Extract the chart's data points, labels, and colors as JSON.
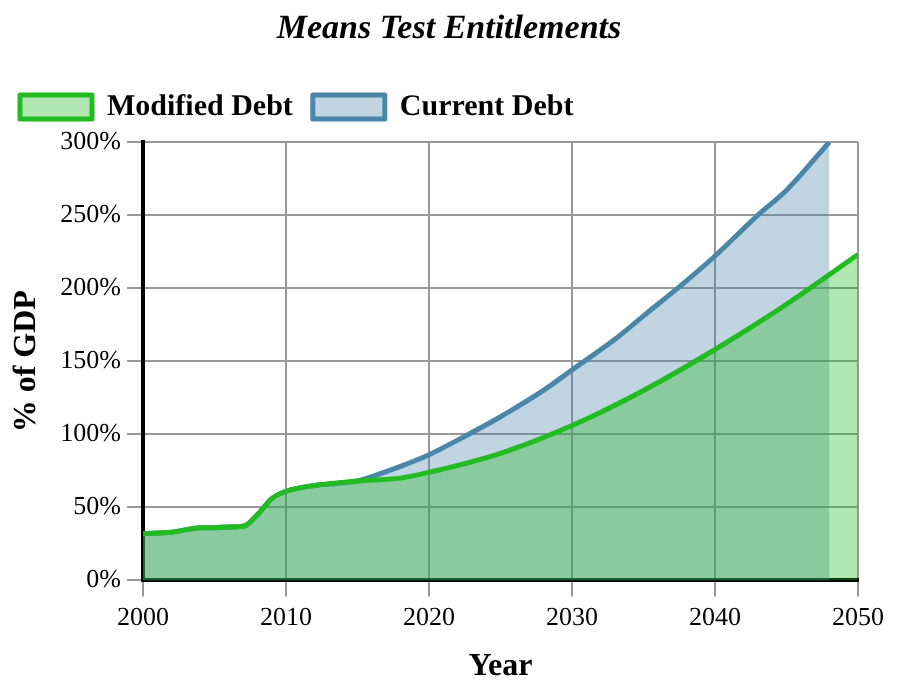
{
  "chart_data": {
    "type": "area",
    "title": "Means Test Entitlements",
    "xlabel": "Year",
    "ylabel": "% of GDP",
    "series": [
      {
        "name": "Current Debt",
        "color": "#4a86a8",
        "x": [
          2000,
          2002,
          2004,
          2007,
          2008,
          2009,
          2010,
          2012,
          2015,
          2016,
          2018,
          2020,
          2022,
          2025,
          2028,
          2030,
          2033,
          2035,
          2038,
          2040,
          2043,
          2045,
          2048
        ],
        "values": [
          32,
          33,
          36,
          37,
          45,
          56,
          61,
          65,
          68,
          71,
          78,
          86,
          96,
          112,
          130,
          144,
          165,
          181,
          205,
          222,
          250,
          267,
          300
        ]
      },
      {
        "name": "Modified Debt",
        "color": "#22bb22",
        "x": [
          2000,
          2002,
          2004,
          2007,
          2008,
          2009,
          2010,
          2012,
          2015,
          2018,
          2020,
          2025,
          2030,
          2035,
          2040,
          2045,
          2050
        ],
        "values": [
          32,
          33,
          36,
          37,
          45,
          56,
          61,
          65,
          68,
          70,
          74,
          87,
          106,
          130,
          158,
          189,
          223
        ]
      }
    ],
    "xlim": [
      2000,
      2050
    ],
    "xticks": [
      2000,
      2010,
      2020,
      2030,
      2040,
      2050
    ],
    "ylim": [
      0,
      300
    ],
    "yticks": [
      {
        "value": 0,
        "label": "0%"
      },
      {
        "value": 50,
        "label": "50%"
      },
      {
        "value": 100,
        "label": "100%"
      },
      {
        "value": 150,
        "label": "150%"
      },
      {
        "value": 200,
        "label": "200%"
      },
      {
        "value": 250,
        "label": "250%"
      },
      {
        "value": 300,
        "label": "300%"
      }
    ],
    "grid": true,
    "legend": "top left",
    "marker": "none",
    "line_style": "solid"
  }
}
